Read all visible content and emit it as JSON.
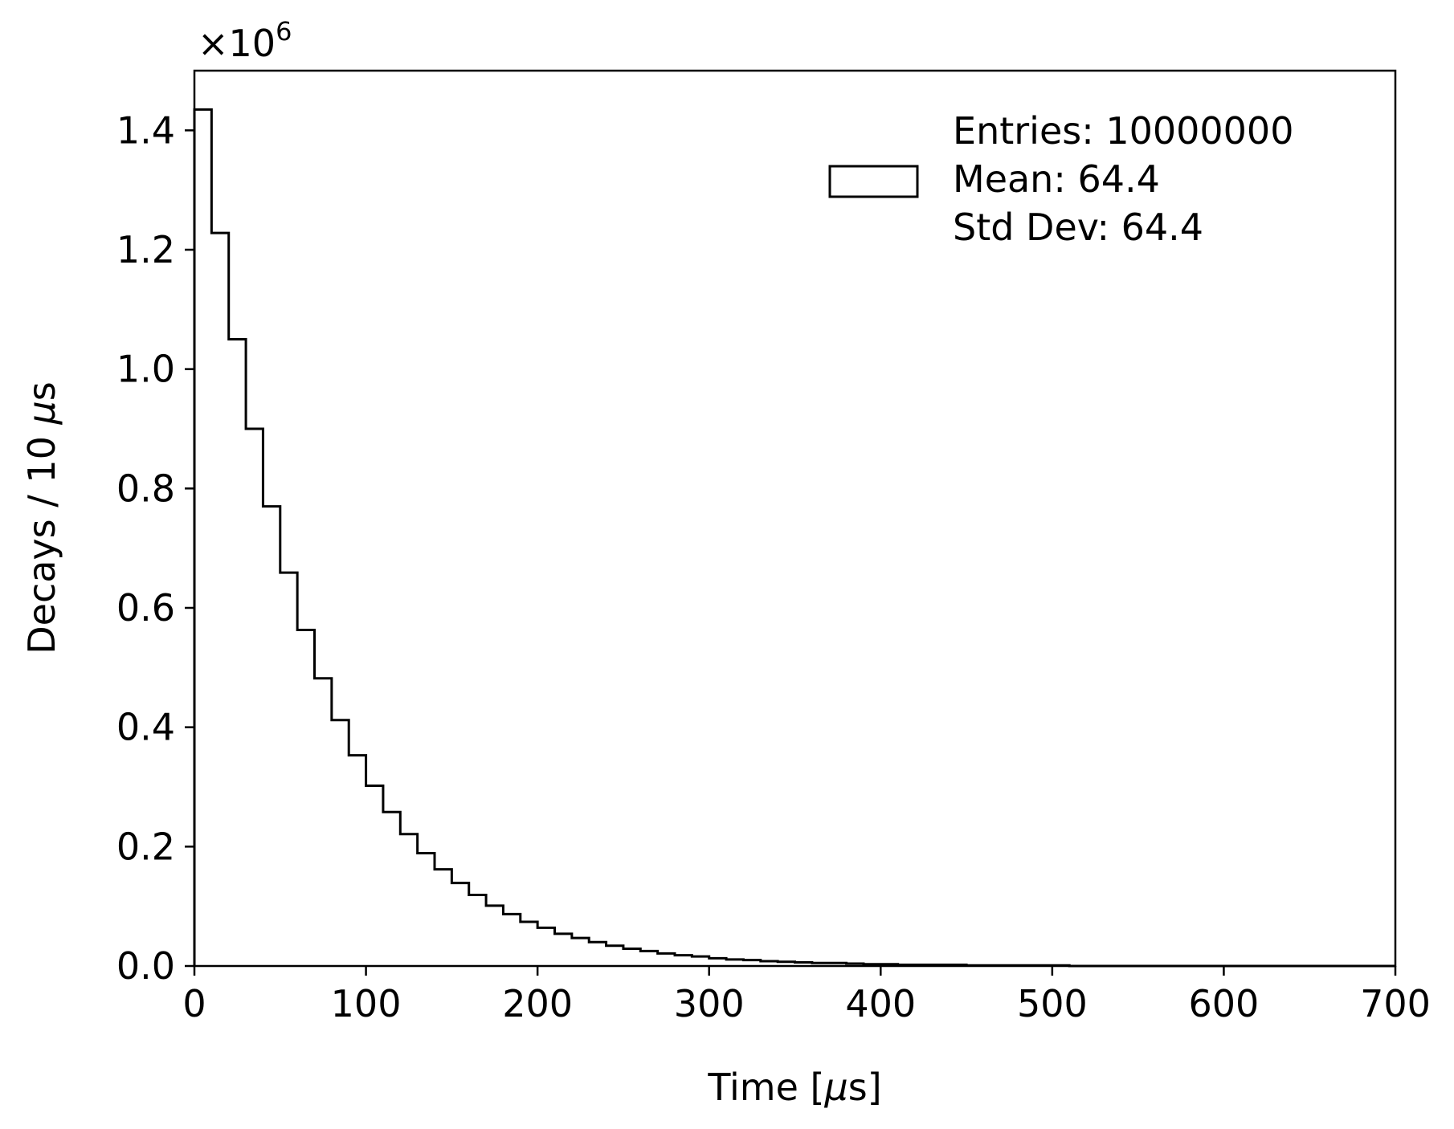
{
  "chart_data": {
    "type": "histogram",
    "xlabel_prefix": "Time [",
    "xlabel_mu": "μ",
    "xlabel_suffix": "s]",
    "ylabel_prefix": "Decays / 10 ",
    "ylabel_mu": "μ",
    "ylabel_suffix": "s",
    "offset_text_base": "×10",
    "offset_text_exp": "6",
    "xlim": [
      0,
      700
    ],
    "ylim": [
      0,
      1.5
    ],
    "xticks": [
      0,
      100,
      200,
      300,
      400,
      500,
      600,
      700
    ],
    "xtick_labels": [
      "0",
      "100",
      "200",
      "300",
      "400",
      "500",
      "600",
      "700"
    ],
    "yticks": [
      0.0,
      0.2,
      0.4,
      0.6,
      0.8,
      1.0,
      1.2,
      1.4
    ],
    "ytick_labels": [
      "0.0",
      "0.2",
      "0.4",
      "0.6",
      "0.8",
      "1.0",
      "1.2",
      "1.4"
    ],
    "bin_width": 10,
    "bin_start": 0,
    "values": [
      1.435,
      1.228,
      1.05,
      0.9,
      0.77,
      0.659,
      0.563,
      0.482,
      0.412,
      0.353,
      0.302,
      0.258,
      0.221,
      0.189,
      0.162,
      0.139,
      0.119,
      0.101,
      0.087,
      0.074,
      0.064,
      0.054,
      0.047,
      0.04,
      0.034,
      0.029,
      0.025,
      0.021,
      0.018,
      0.016,
      0.013,
      0.011,
      0.01,
      0.008,
      0.007,
      0.006,
      0.005,
      0.005,
      0.004,
      0.003,
      0.003,
      0.002,
      0.002,
      0.002,
      0.002,
      0.001,
      0.001,
      0.001,
      0.001,
      0.001,
      0.001,
      0.0,
      0.0,
      0.0,
      0.0,
      0.0,
      0.0,
      0.0,
      0.0,
      0.0,
      0.0,
      0.0,
      0.0,
      0.0,
      0.0,
      0.0,
      0.0,
      0.0,
      0.0,
      0.0
    ],
    "legend": {
      "location": "top-right",
      "entries_label": "Entries: 10000000",
      "mean_label": "Mean: 64.4",
      "std_label": "Std Dev: 64.4"
    },
    "grid": false,
    "line_color": "#000000"
  }
}
